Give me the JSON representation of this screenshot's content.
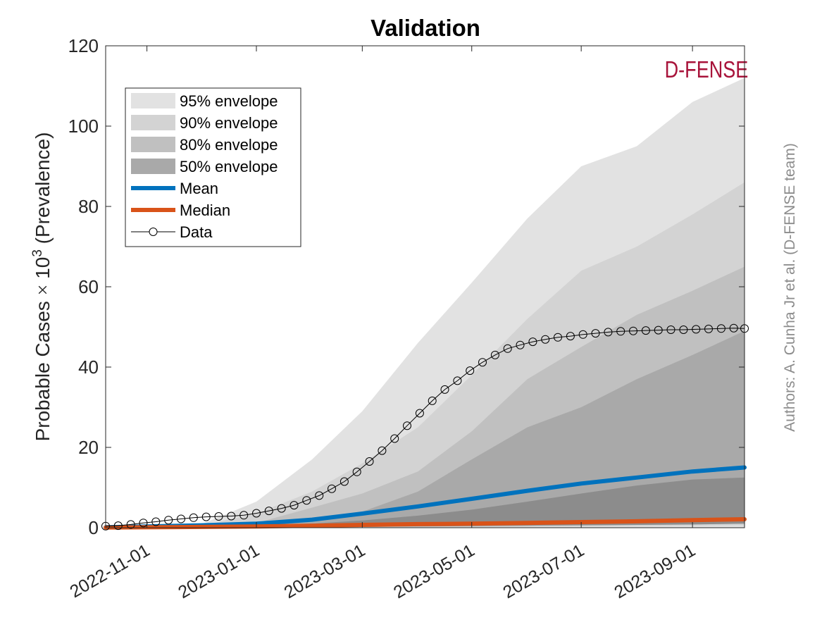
{
  "chart_data": {
    "type": "area",
    "title": "Validation",
    "ylabel_prefix": "Probable Cases ",
    "ylabel_times": "×",
    "ylabel_base": " 10",
    "ylabel_exp": "3",
    "ylabel_suffix": " (Prevalence)",
    "xlim": [
      "2022-10-09",
      "2023-09-30"
    ],
    "ylim": [
      0,
      120
    ],
    "yticks": [
      0,
      20,
      40,
      60,
      80,
      100,
      120
    ],
    "xticks": [
      "2022-11-01",
      "2023-01-01",
      "2023-03-01",
      "2023-05-01",
      "2023-07-01",
      "2023-09-01"
    ],
    "grid": false,
    "legend_position": "top-left",
    "watermark": "D-FENSE",
    "credit": "Authors: A. Cunha Jr et al. (D-FENSE team)",
    "x": [
      "2022-10-09",
      "2022-11-01",
      "2022-12-01",
      "2023-01-01",
      "2023-02-01",
      "2023-03-01",
      "2023-04-01",
      "2023-05-01",
      "2023-06-01",
      "2023-07-01",
      "2023-08-01",
      "2023-09-01",
      "2023-09-30"
    ],
    "envelopes": [
      {
        "name": "95% envelope",
        "color": "#e2e2e2",
        "lower": [
          0,
          0,
          0,
          0,
          0,
          0,
          0,
          0,
          0,
          0,
          0,
          0,
          0
        ],
        "upper": [
          0,
          0.1,
          0.8,
          6.5,
          17,
          29,
          46,
          61,
          77,
          90,
          95,
          106,
          112
        ]
      },
      {
        "name": "90% envelope",
        "color": "#d3d3d3",
        "lower": [
          0,
          0,
          0,
          0,
          0,
          0,
          0,
          0.1,
          0.2,
          0.3,
          0.4,
          0.5,
          0.6
        ],
        "upper": [
          0,
          0.1,
          0.5,
          3.5,
          9,
          16,
          25,
          38,
          52,
          64,
          70,
          78,
          86
        ]
      },
      {
        "name": "80% envelope",
        "color": "#c0c0c0",
        "lower": [
          0,
          0,
          0,
          0.1,
          0.1,
          0.2,
          0.3,
          0.4,
          0.5,
          0.6,
          0.7,
          0.8,
          1.0
        ],
        "upper": [
          0,
          0.1,
          0.3,
          1.2,
          5,
          8.5,
          14,
          24,
          37,
          45,
          53,
          59,
          65
        ]
      },
      {
        "name": "50% envelope",
        "color": "#a9a9a9",
        "lower": [
          0,
          0,
          0,
          0.1,
          0.3,
          0.6,
          1.0,
          1.8,
          2.8,
          4.5,
          6.5,
          9.0,
          11.0
        ],
        "upper": [
          0,
          0.1,
          0.2,
          0.5,
          1.5,
          4,
          9,
          17,
          25,
          30,
          37,
          43,
          49
        ]
      }
    ],
    "inner_band": {
      "color": "#8c8c8c",
      "lower": [
        0,
        0,
        0,
        0,
        0.1,
        0.2,
        0.3,
        0.4,
        0.5,
        0.6,
        0.7,
        0.8,
        1.0
      ],
      "upper": [
        0,
        0.1,
        0.2,
        0.4,
        1.0,
        1.8,
        3.0,
        4.5,
        6.5,
        8.5,
        10.5,
        12.0,
        12.5
      ]
    },
    "series": [
      {
        "name": "Mean",
        "color": "#0072bd",
        "values": [
          0.1,
          0.3,
          0.6,
          1.0,
          2.0,
          3.5,
          5.3,
          7.2,
          9.2,
          11.0,
          12.5,
          14.0,
          15.0
        ]
      },
      {
        "name": "Median",
        "color": "#d95319",
        "values": [
          0.05,
          0.1,
          0.2,
          0.3,
          0.5,
          0.7,
          0.9,
          1.0,
          1.2,
          1.4,
          1.6,
          1.9,
          2.1
        ]
      }
    ],
    "data_series": {
      "name": "Data",
      "x": [
        "2022-10-09",
        "2022-10-16",
        "2022-10-23",
        "2022-10-30",
        "2022-11-06",
        "2022-11-13",
        "2022-11-20",
        "2022-11-27",
        "2022-12-04",
        "2022-12-11",
        "2022-12-18",
        "2022-12-25",
        "2023-01-01",
        "2023-01-08",
        "2023-01-15",
        "2023-01-22",
        "2023-01-29",
        "2023-02-05",
        "2023-02-12",
        "2023-02-19",
        "2023-02-26",
        "2023-03-05",
        "2023-03-12",
        "2023-03-19",
        "2023-03-26",
        "2023-04-02",
        "2023-04-09",
        "2023-04-16",
        "2023-04-23",
        "2023-04-30",
        "2023-05-07",
        "2023-05-14",
        "2023-05-21",
        "2023-05-28",
        "2023-06-04",
        "2023-06-11",
        "2023-06-18",
        "2023-06-25",
        "2023-07-02",
        "2023-07-09",
        "2023-07-16",
        "2023-07-23",
        "2023-07-30",
        "2023-08-06",
        "2023-08-13",
        "2023-08-20",
        "2023-08-27",
        "2023-09-03",
        "2023-09-10",
        "2023-09-17",
        "2023-09-24",
        "2023-09-30"
      ],
      "y": [
        0.4,
        0.5,
        0.8,
        1.2,
        1.5,
        1.9,
        2.2,
        2.5,
        2.7,
        2.8,
        2.9,
        3.1,
        3.6,
        4.2,
        4.8,
        5.6,
        6.8,
        8.0,
        9.7,
        11.5,
        13.9,
        16.5,
        19.2,
        22.2,
        25.4,
        28.5,
        31.6,
        34.4,
        36.6,
        39.1,
        41.2,
        43.0,
        44.6,
        45.5,
        46.3,
        46.9,
        47.4,
        47.7,
        48.1,
        48.4,
        48.7,
        48.9,
        49.0,
        49.1,
        49.2,
        49.3,
        49.3,
        49.4,
        49.5,
        49.6,
        49.7,
        49.6
      ]
    }
  }
}
